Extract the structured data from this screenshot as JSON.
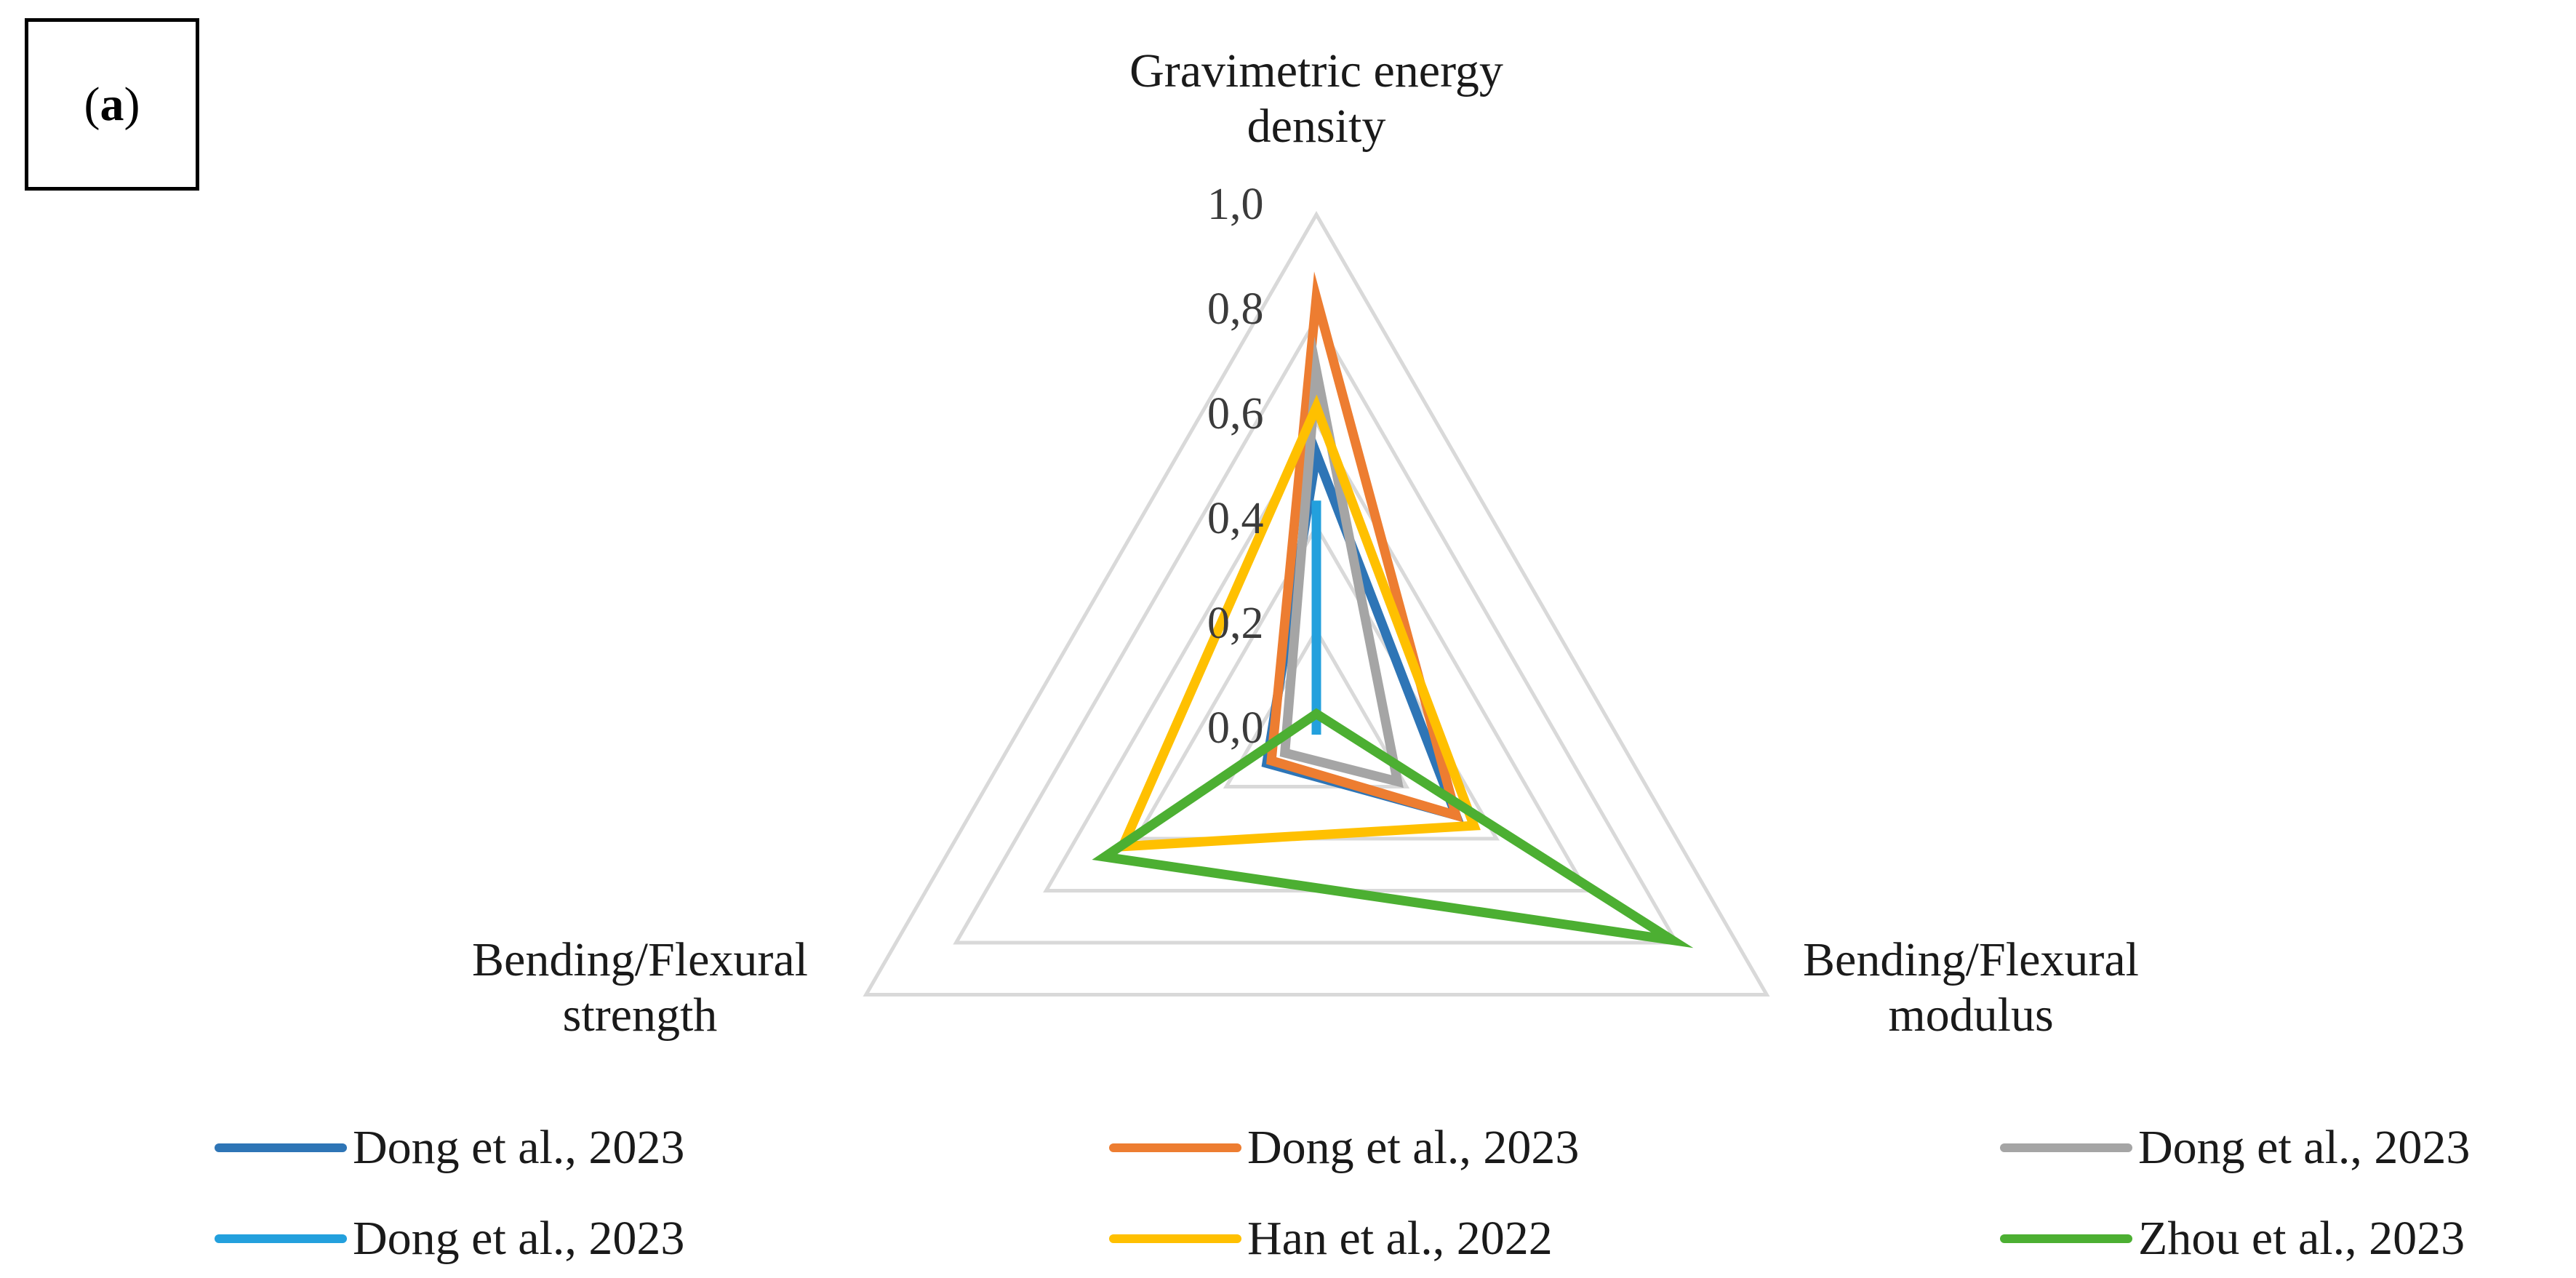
{
  "panel_label": {
    "open": "(",
    "letter": "a",
    "close": ")"
  },
  "chart_data": {
    "type": "radar",
    "axes": [
      {
        "label_line1": "Gravimetric energy",
        "label_line2": "density"
      },
      {
        "label_line1": "Bending/Flexural",
        "label_line2": "modulus"
      },
      {
        "label_line1": "Bending/Flexural",
        "label_line2": "strength"
      }
    ],
    "rlim": [
      0,
      1
    ],
    "ticks": [
      "0,0",
      "0,2",
      "0,4",
      "0,6",
      "0,8",
      "1,0"
    ],
    "grid_color": "#d9d9d9",
    "legend_position": "bottom",
    "series": [
      {
        "name": "Dong et al., 2023",
        "color": "#2e75b6",
        "values": [
          0.54,
          0.31,
          0.11
        ]
      },
      {
        "name": "Dong et al., 2023",
        "color": "#ed7d31",
        "values": [
          0.84,
          0.31,
          0.1
        ]
      },
      {
        "name": "Dong et al., 2023",
        "color": "#a5a5a5",
        "values": [
          0.7,
          0.18,
          0.07
        ]
      },
      {
        "name": "Dong et al., 2023",
        "color": "#23a0dd",
        "values": [
          0.45,
          0.0,
          0.0
        ]
      },
      {
        "name": "Han et al., 2022",
        "color": "#ffc000",
        "values": [
          0.63,
          0.35,
          0.43
        ]
      },
      {
        "name": "Zhou et al., 2023",
        "color": "#4caf32",
        "values": [
          0.04,
          0.79,
          0.47
        ]
      }
    ]
  }
}
